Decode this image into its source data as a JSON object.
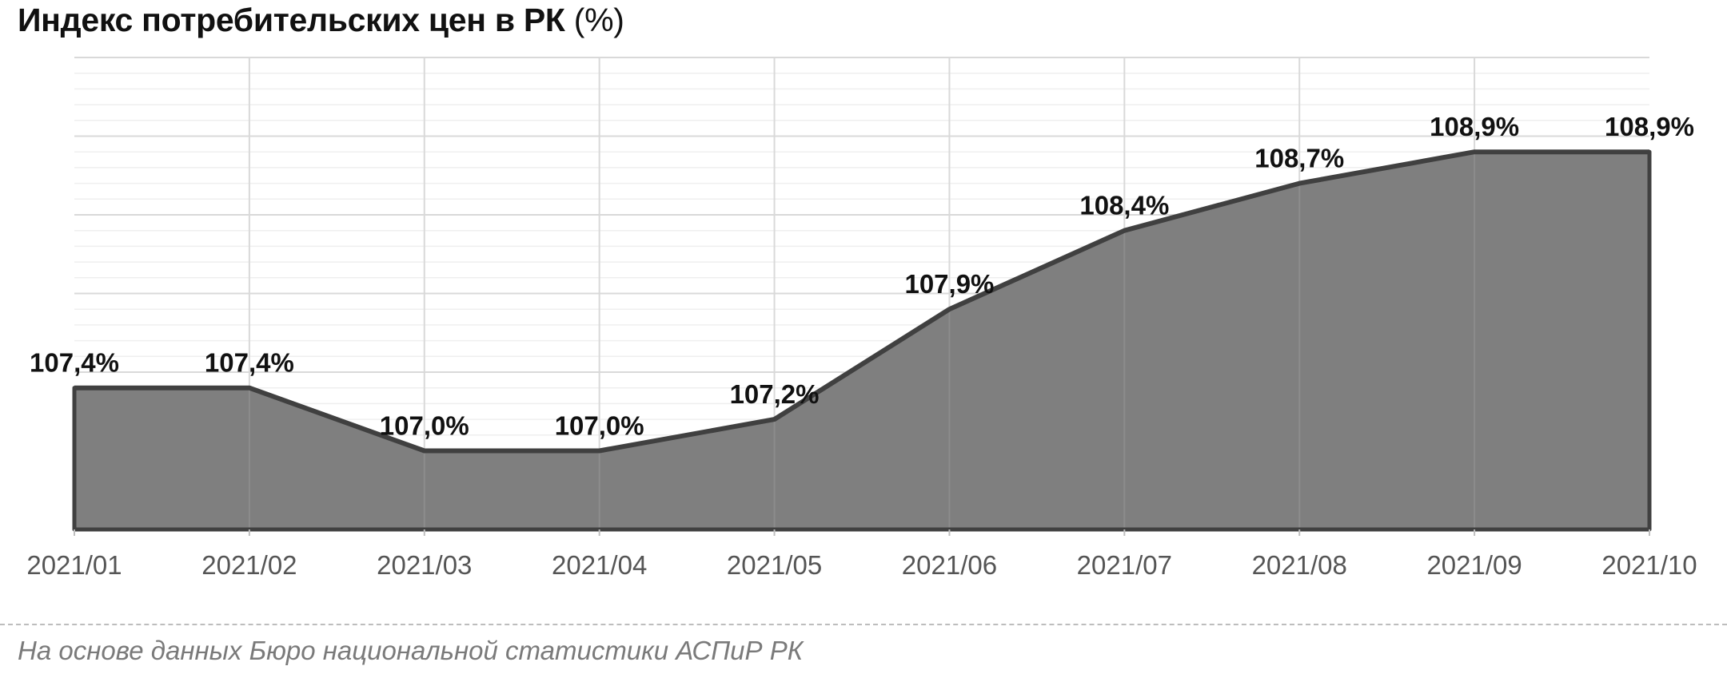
{
  "title": {
    "main": "Индекс потребительских цен в РК",
    "unit": "(%)"
  },
  "source_note": "На основе данных Бюро национальной статистики АСПиР РК",
  "colors": {
    "area_fill": "#7f7f7f",
    "line": "#404040",
    "grid_major": "#d9d9d9",
    "grid_minor": "#efefef"
  },
  "chart_data": {
    "type": "area",
    "title": "Индекс потребительских цен в РК (%)",
    "categories": [
      "2021/01",
      "2021/02",
      "2021/03",
      "2021/04",
      "2021/05",
      "2021/06",
      "2021/07",
      "2021/08",
      "2021/09",
      "2021/10"
    ],
    "series": [
      {
        "values": [
          107.4,
          107.4,
          107.0,
          107.0,
          107.2,
          107.9,
          108.4,
          108.7,
          108.9,
          108.9
        ],
        "labels": [
          "107,4%",
          "107,4%",
          "107,0%",
          "107,0%",
          "107,2%",
          "107,9%",
          "108,4%",
          "108,7%",
          "108,9%",
          "108,9%"
        ]
      }
    ],
    "ylim": [
      106.5,
      109.5
    ],
    "y_axis_visible": false,
    "grid": true,
    "legend": "none"
  }
}
